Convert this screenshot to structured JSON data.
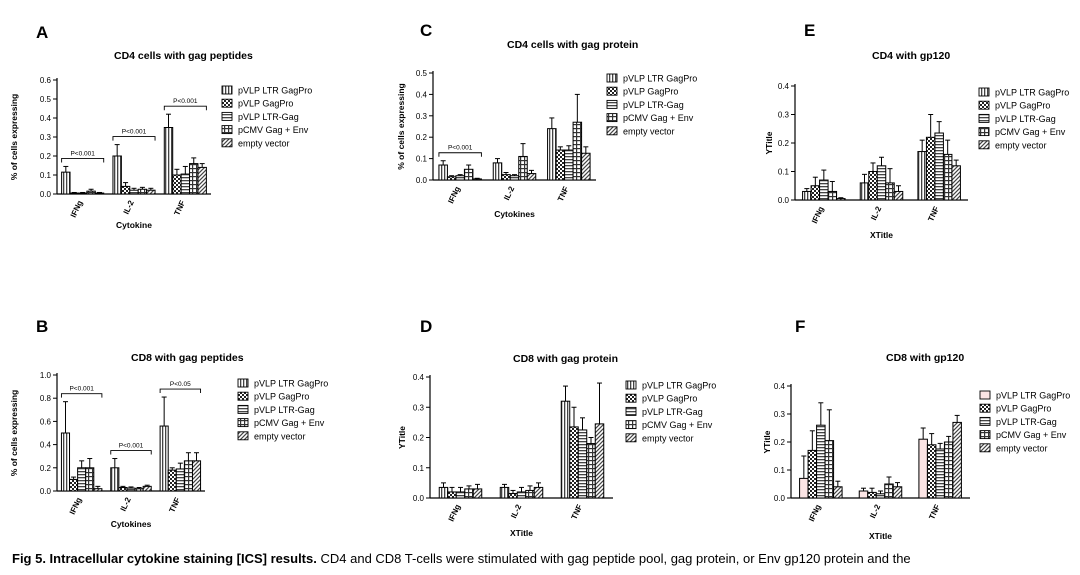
{
  "figure": {
    "caption_label": "Fig 5. Intracellular cytokine staining [ICS] results.",
    "caption_text": "CD4 and CD8 T-cells were stimulated with gag peptide pool, gag protein, or Env gp120 protein and the"
  },
  "chart_data": [
    {
      "type": "bar",
      "panel": "A",
      "title": "CD4 cells with gag peptides",
      "xlabel": "Cytokine",
      "ylabel": "% of cells expressing",
      "ylim": [
        0,
        0.6
      ],
      "yticks": [
        "0.0",
        "0.1",
        "0.2",
        "0.3",
        "0.4",
        "0.5",
        "0.6"
      ],
      "categories": [
        "IFNg",
        "IL-2",
        "TNF"
      ],
      "series": [
        {
          "name": "pVLP LTR GagPro",
          "values": [
            0.115,
            0.2,
            0.35
          ],
          "errors": [
            0.03,
            0.06,
            0.07
          ]
        },
        {
          "name": "pVLP GagPro",
          "values": [
            0.005,
            0.04,
            0.1
          ],
          "errors": [
            0.003,
            0.02,
            0.03
          ]
        },
        {
          "name": "pVLP LTR-Gag",
          "values": [
            0.005,
            0.02,
            0.105
          ],
          "errors": [
            0.003,
            0.01,
            0.04
          ]
        },
        {
          "name": "pCMV Gag + Env",
          "values": [
            0.015,
            0.025,
            0.16
          ],
          "errors": [
            0.01,
            0.01,
            0.03
          ]
        },
        {
          "name": "empty vector",
          "values": [
            0.005,
            0.02,
            0.14
          ],
          "errors": [
            0.003,
            0.01,
            0.02
          ]
        }
      ],
      "annotations": [
        {
          "text": "P<0.001",
          "category": "IFNg"
        },
        {
          "text": "P<0.001",
          "category": "IL-2"
        },
        {
          "text": "P<0.001",
          "category": "TNF"
        }
      ],
      "legend": "right"
    },
    {
      "type": "bar",
      "panel": "C",
      "title": "CD4 cells with gag protein",
      "xlabel": "Cytokines",
      "ylabel": "% of cells expressing",
      "ylim": [
        0,
        0.5
      ],
      "yticks": [
        "0.0",
        "0.1",
        "0.2",
        "0.3",
        "0.4",
        "0.5"
      ],
      "categories": [
        "IFNg",
        "IL-2",
        "TNF"
      ],
      "series": [
        {
          "name": "pVLP LTR GagPro",
          "values": [
            0.07,
            0.08,
            0.24
          ],
          "errors": [
            0.02,
            0.02,
            0.05
          ]
        },
        {
          "name": "pVLP GagPro",
          "values": [
            0.015,
            0.025,
            0.14
          ],
          "errors": [
            0.005,
            0.01,
            0.015
          ]
        },
        {
          "name": "pVLP LTR-Gag",
          "values": [
            0.02,
            0.02,
            0.14
          ],
          "errors": [
            0.005,
            0.005,
            0.02
          ]
        },
        {
          "name": "pCMV Gag + Env",
          "values": [
            0.05,
            0.11,
            0.27
          ],
          "errors": [
            0.02,
            0.06,
            0.13
          ]
        },
        {
          "name": "empty vector",
          "values": [
            0.005,
            0.03,
            0.125
          ],
          "errors": [
            0.003,
            0.015,
            0.03
          ]
        }
      ],
      "annotations": [
        {
          "text": "P<0.001",
          "category": "IFNg"
        }
      ],
      "legend": "right"
    },
    {
      "type": "bar",
      "panel": "E",
      "title": "CD4 with gp120",
      "xlabel": "XTitle",
      "ylabel": "YTitle",
      "ylim": [
        0,
        0.4
      ],
      "yticks": [
        "0.0",
        "0.1",
        "0.2",
        "0.3",
        "0.4"
      ],
      "categories": [
        "IFNg",
        "IL-2",
        "TNF"
      ],
      "series": [
        {
          "name": "pVLP LTR GagPro",
          "values": [
            0.03,
            0.06,
            0.17
          ],
          "errors": [
            0.01,
            0.03,
            0.04
          ]
        },
        {
          "name": "pVLP GagPro",
          "values": [
            0.05,
            0.1,
            0.22
          ],
          "errors": [
            0.03,
            0.03,
            0.08
          ]
        },
        {
          "name": "pVLP LTR-Gag",
          "values": [
            0.07,
            0.12,
            0.235
          ],
          "errors": [
            0.035,
            0.03,
            0.04
          ]
        },
        {
          "name": "pCMV Gag + Env",
          "values": [
            0.03,
            0.06,
            0.16
          ],
          "errors": [
            0.035,
            0.05,
            0.05
          ]
        },
        {
          "name": "empty vector",
          "values": [
            0.005,
            0.03,
            0.12
          ],
          "errors": [
            0.003,
            0.02,
            0.02
          ]
        }
      ],
      "legend": "right"
    },
    {
      "type": "bar",
      "panel": "B",
      "title": "CD8 with gag peptides",
      "xlabel": "Cytokines",
      "ylabel": "% of cells expressing",
      "ylim": [
        0,
        1.0
      ],
      "yticks": [
        "0.0",
        "0.2",
        "0.4",
        "0.6",
        "0.8",
        "1.0"
      ],
      "categories": [
        "IFNg",
        "IL-2",
        "TNF"
      ],
      "series": [
        {
          "name": "pVLP LTR GagPro",
          "values": [
            0.5,
            0.2,
            0.56
          ],
          "errors": [
            0.27,
            0.08,
            0.25
          ]
        },
        {
          "name": "pVLP GagPro",
          "values": [
            0.1,
            0.03,
            0.18
          ],
          "errors": [
            0.02,
            0.01,
            0.02
          ]
        },
        {
          "name": "pVLP LTR-Gag",
          "values": [
            0.2,
            0.025,
            0.19
          ],
          "errors": [
            0.06,
            0.01,
            0.05
          ]
        },
        {
          "name": "pCMV Gag + Env",
          "values": [
            0.2,
            0.02,
            0.26
          ],
          "errors": [
            0.08,
            0.01,
            0.07
          ]
        },
        {
          "name": "empty vector",
          "values": [
            0.02,
            0.04,
            0.26
          ],
          "errors": [
            0.02,
            0.01,
            0.07
          ]
        }
      ],
      "annotations": [
        {
          "text": "P<0.001",
          "category": "IFNg"
        },
        {
          "text": "P<0.001",
          "category": "IL-2"
        },
        {
          "text": "P<0.05",
          "category": "TNF"
        }
      ],
      "legend": "right"
    },
    {
      "type": "bar",
      "panel": "D",
      "title": "CD8 with gag protein",
      "xlabel": "XTitle",
      "ylabel": "YTitle",
      "ylim": [
        0,
        0.4
      ],
      "yticks": [
        "0.0",
        "0.1",
        "0.2",
        "0.3",
        "0.4"
      ],
      "categories": [
        "IFNg",
        "IL-2",
        "TNF"
      ],
      "series": [
        {
          "name": "pVLP LTR GagPro",
          "values": [
            0.035,
            0.035,
            0.32
          ],
          "errors": [
            0.015,
            0.01,
            0.05
          ]
        },
        {
          "name": "pVLP GagPro",
          "values": [
            0.02,
            0.015,
            0.235
          ],
          "errors": [
            0.015,
            0.01,
            0.065
          ]
        },
        {
          "name": "pVLP LTR-Gag",
          "values": [
            0.02,
            0.02,
            0.225
          ],
          "errors": [
            0.015,
            0.015,
            0.04
          ]
        },
        {
          "name": "pCMV Gag + Env",
          "values": [
            0.03,
            0.025,
            0.18
          ],
          "errors": [
            0.01,
            0.015,
            0.02
          ]
        },
        {
          "name": "empty vector",
          "values": [
            0.03,
            0.035,
            0.245
          ],
          "errors": [
            0.015,
            0.015,
            0.135
          ]
        }
      ],
      "legend": "right"
    },
    {
      "type": "bar",
      "panel": "F",
      "title": "CD8 with gp120",
      "xlabel": "XTitle",
      "ylabel": "YTitle",
      "ylim": [
        0,
        0.4
      ],
      "yticks": [
        "0.0",
        "0.1",
        "0.2",
        "0.3",
        "0.4"
      ],
      "categories": [
        "IFNg",
        "IL-2",
        "TNF"
      ],
      "series": [
        {
          "name": "pVLP LTR GagPro",
          "values": [
            0.07,
            0.025,
            0.21
          ],
          "errors": [
            0.08,
            0.01,
            0.04
          ]
        },
        {
          "name": "pVLP GagPro",
          "values": [
            0.17,
            0.02,
            0.19
          ],
          "errors": [
            0.07,
            0.015,
            0.04
          ]
        },
        {
          "name": "pVLP LTR-Gag",
          "values": [
            0.26,
            0.015,
            0.175
          ],
          "errors": [
            0.08,
            0.01,
            0.02
          ]
        },
        {
          "name": "pCMV Gag + Env",
          "values": [
            0.205,
            0.05,
            0.2
          ],
          "errors": [
            0.11,
            0.025,
            0.02
          ]
        },
        {
          "name": "empty vector",
          "values": [
            0.04,
            0.04,
            0.27
          ],
          "errors": [
            0.02,
            0.015,
            0.025
          ]
        }
      ],
      "legend": "right",
      "colors": {
        "first_series_fill": "#fbe4e4"
      }
    }
  ]
}
